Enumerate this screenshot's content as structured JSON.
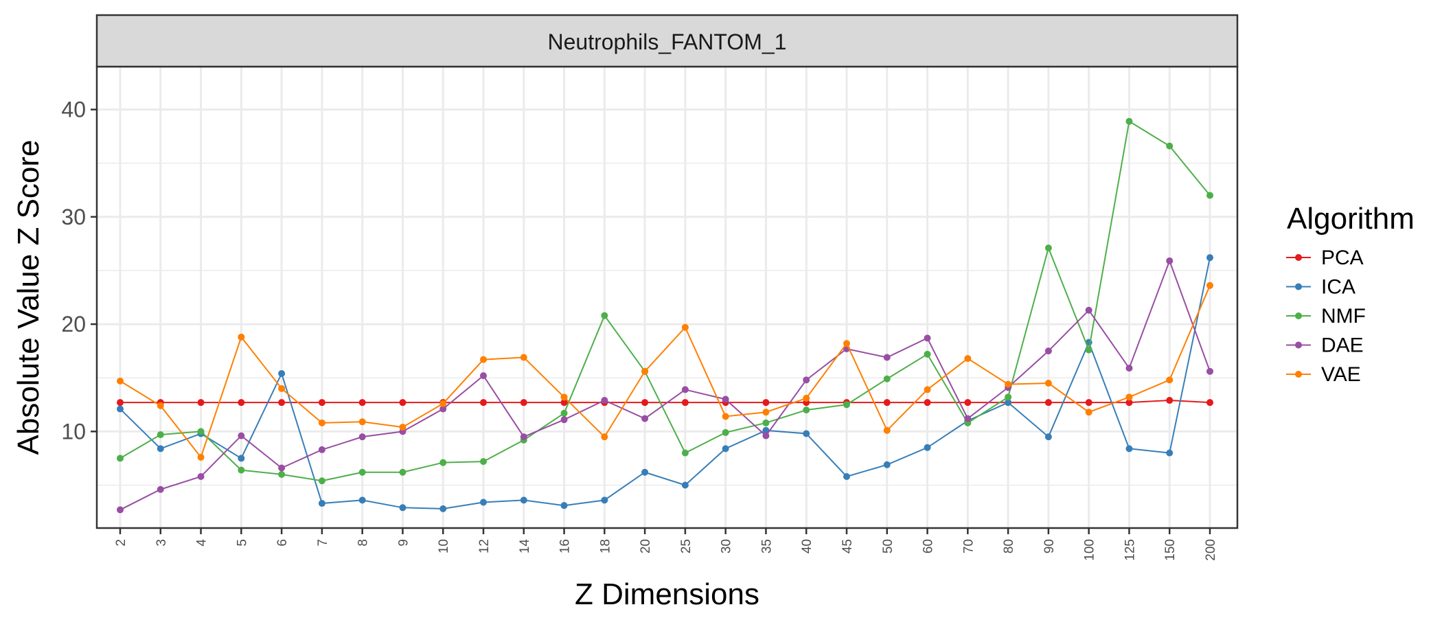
{
  "chart_data": {
    "type": "line",
    "facet_title": "Neutrophils_FANTOM_1",
    "xlabel": "Z Dimensions",
    "ylabel": "Absolute Value Z Score",
    "ylim": [
      1,
      44
    ],
    "yticks": [
      10,
      20,
      30,
      40
    ],
    "grid": true,
    "legend_title": "Algorithm",
    "legend_position": "right",
    "categories": [
      "2",
      "3",
      "4",
      "5",
      "6",
      "7",
      "8",
      "9",
      "10",
      "12",
      "14",
      "16",
      "18",
      "20",
      "25",
      "30",
      "35",
      "40",
      "45",
      "50",
      "60",
      "70",
      "80",
      "90",
      "100",
      "125",
      "150",
      "200"
    ],
    "series": [
      {
        "name": "PCA",
        "color": "#e41a1c",
        "values": [
          12.7,
          12.7,
          12.7,
          12.7,
          12.7,
          12.7,
          12.7,
          12.7,
          12.7,
          12.7,
          12.7,
          12.7,
          12.7,
          12.7,
          12.7,
          12.7,
          12.7,
          12.7,
          12.7,
          12.7,
          12.7,
          12.7,
          12.7,
          12.7,
          12.7,
          12.7,
          12.9,
          12.7
        ]
      },
      {
        "name": "ICA",
        "color": "#377eb8",
        "values": [
          12.1,
          8.4,
          9.8,
          7.5,
          15.4,
          3.3,
          3.6,
          2.9,
          2.8,
          3.4,
          3.6,
          3.1,
          3.6,
          6.2,
          5.0,
          8.4,
          10.1,
          9.8,
          5.8,
          6.9,
          8.5,
          11.0,
          12.7,
          9.5,
          18.3,
          8.4,
          8.0,
          26.2
        ]
      },
      {
        "name": "NMF",
        "color": "#4daf4a",
        "values": [
          7.5,
          9.7,
          10.0,
          6.4,
          6.0,
          5.4,
          6.2,
          6.2,
          7.1,
          7.2,
          9.2,
          11.7,
          20.8,
          15.6,
          8.0,
          9.9,
          10.8,
          12.0,
          12.5,
          14.9,
          17.2,
          10.8,
          13.2,
          27.1,
          17.6,
          38.9,
          36.6,
          32.0
        ]
      },
      {
        "name": "DAE",
        "color": "#984ea3",
        "values": [
          2.7,
          4.6,
          5.8,
          9.6,
          6.6,
          8.3,
          9.5,
          10.0,
          12.1,
          15.2,
          9.5,
          11.1,
          12.9,
          11.2,
          13.9,
          13.0,
          9.6,
          14.8,
          17.7,
          16.9,
          18.7,
          11.2,
          14.1,
          17.5,
          21.3,
          15.9,
          25.9,
          15.6
        ]
      },
      {
        "name": "VAE",
        "color": "#ff7f00",
        "values": [
          14.7,
          12.4,
          7.6,
          18.8,
          14.0,
          10.8,
          10.9,
          10.4,
          12.6,
          16.7,
          16.9,
          13.2,
          9.5,
          15.6,
          19.7,
          11.4,
          11.8,
          13.1,
          18.2,
          10.1,
          13.9,
          16.8,
          14.4,
          14.5,
          11.8,
          13.2,
          14.8,
          23.6
        ]
      }
    ]
  }
}
